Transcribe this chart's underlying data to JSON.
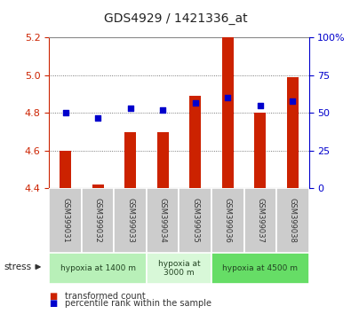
{
  "title": "GDS4929 / 1421336_at",
  "samples": [
    "GSM399031",
    "GSM399032",
    "GSM399033",
    "GSM399034",
    "GSM399035",
    "GSM399036",
    "GSM399037",
    "GSM399038"
  ],
  "transformed_count": [
    4.6,
    4.42,
    4.7,
    4.7,
    4.89,
    5.2,
    4.8,
    4.99
  ],
  "percentile_rank": [
    50,
    47,
    53,
    52,
    57,
    60,
    55,
    58
  ],
  "ylim_left": [
    4.4,
    5.2
  ],
  "ylim_right": [
    0,
    100
  ],
  "yticks_left": [
    4.4,
    4.6,
    4.8,
    5.0,
    5.2
  ],
  "yticks_right": [
    0,
    25,
    50,
    75,
    100
  ],
  "bar_color": "#cc2200",
  "dot_color": "#0000cc",
  "bar_bottom": 4.4,
  "bar_width": 0.35,
  "groups": [
    {
      "label": "hypoxia at 1400 m",
      "start": 0,
      "end": 3,
      "color": "#b8f0b8"
    },
    {
      "label": "hypoxia at\n3000 m",
      "start": 3,
      "end": 5,
      "color": "#d8f8d8"
    },
    {
      "label": "hypoxia at 4500 m",
      "start": 5,
      "end": 8,
      "color": "#66dd66"
    }
  ],
  "stress_label": "stress",
  "legend_items": [
    {
      "color": "#cc2200",
      "label": "transformed count"
    },
    {
      "color": "#0000cc",
      "label": "percentile rank within the sample"
    }
  ],
  "title_color": "#222222",
  "left_axis_color": "#cc2200",
  "right_axis_color": "#0000cc",
  "grid_color": "#555555",
  "sample_box_color": "#cccccc",
  "sample_box_edge": "#ffffff"
}
